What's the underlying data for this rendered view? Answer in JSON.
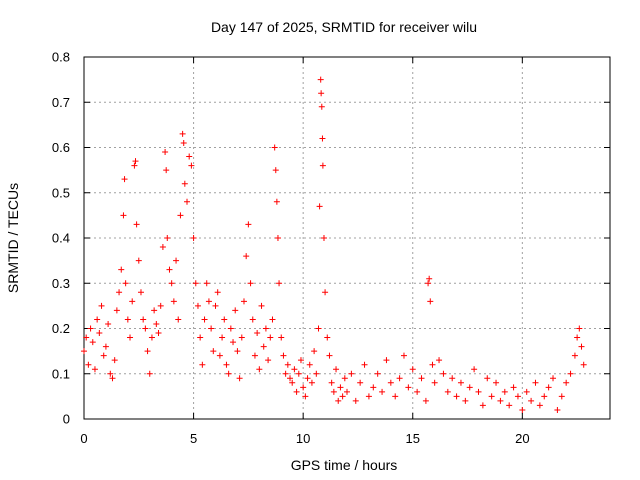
{
  "chart_data": {
    "type": "scatter",
    "title": "Day 147 of 2025, SRMTID for receiver wilu",
    "xlabel": "GPS time / hours",
    "ylabel": "SRMTID / TECUs",
    "xlim": [
      0,
      24.0
    ],
    "ylim": [
      0,
      0.8
    ],
    "xticks": [
      0,
      5,
      10,
      15,
      20
    ],
    "xtick_labels": [
      "0",
      "5",
      "10",
      "15",
      "20"
    ],
    "yticks": [
      0,
      0.1,
      0.2,
      0.3,
      0.4,
      0.5,
      0.6,
      0.7,
      0.8
    ],
    "ytick_labels": [
      "0",
      "0.1",
      "0.2",
      "0.3",
      "0.4",
      "0.5",
      "0.6",
      "0.7",
      "0.8"
    ],
    "grid": true,
    "marker": "plus",
    "color": "#ff0000",
    "series": [
      {
        "name": "SRMTID",
        "points": [
          [
            0.0,
            0.15
          ],
          [
            0.1,
            0.18
          ],
          [
            0.2,
            0.12
          ],
          [
            0.3,
            0.2
          ],
          [
            0.4,
            0.17
          ],
          [
            0.5,
            0.11
          ],
          [
            0.6,
            0.22
          ],
          [
            0.7,
            0.19
          ],
          [
            0.8,
            0.25
          ],
          [
            0.9,
            0.14
          ],
          [
            1.0,
            0.16
          ],
          [
            1.1,
            0.21
          ],
          [
            1.2,
            0.1
          ],
          [
            1.3,
            0.09
          ],
          [
            1.4,
            0.13
          ],
          [
            1.5,
            0.24
          ],
          [
            1.6,
            0.28
          ],
          [
            1.7,
            0.33
          ],
          [
            1.8,
            0.45
          ],
          [
            1.85,
            0.53
          ],
          [
            1.9,
            0.3
          ],
          [
            2.0,
            0.22
          ],
          [
            2.1,
            0.18
          ],
          [
            2.2,
            0.26
          ],
          [
            2.3,
            0.56
          ],
          [
            2.35,
            0.57
          ],
          [
            2.4,
            0.43
          ],
          [
            2.5,
            0.35
          ],
          [
            2.6,
            0.28
          ],
          [
            2.7,
            0.22
          ],
          [
            2.8,
            0.2
          ],
          [
            2.9,
            0.15
          ],
          [
            3.0,
            0.1
          ],
          [
            3.1,
            0.18
          ],
          [
            3.2,
            0.24
          ],
          [
            3.3,
            0.21
          ],
          [
            3.4,
            0.19
          ],
          [
            3.5,
            0.25
          ],
          [
            3.6,
            0.38
          ],
          [
            3.7,
            0.59
          ],
          [
            3.75,
            0.55
          ],
          [
            3.8,
            0.4
          ],
          [
            3.9,
            0.33
          ],
          [
            4.0,
            0.3
          ],
          [
            4.1,
            0.26
          ],
          [
            4.2,
            0.35
          ],
          [
            4.3,
            0.22
          ],
          [
            4.4,
            0.45
          ],
          [
            4.5,
            0.63
          ],
          [
            4.55,
            0.61
          ],
          [
            4.6,
            0.52
          ],
          [
            4.7,
            0.48
          ],
          [
            4.8,
            0.58
          ],
          [
            4.9,
            0.56
          ],
          [
            5.0,
            0.4
          ],
          [
            5.1,
            0.3
          ],
          [
            5.2,
            0.25
          ],
          [
            5.3,
            0.18
          ],
          [
            5.4,
            0.12
          ],
          [
            5.5,
            0.22
          ],
          [
            5.6,
            0.3
          ],
          [
            5.7,
            0.26
          ],
          [
            5.8,
            0.2
          ],
          [
            5.9,
            0.15
          ],
          [
            6.0,
            0.25
          ],
          [
            6.1,
            0.28
          ],
          [
            6.2,
            0.14
          ],
          [
            6.3,
            0.18
          ],
          [
            6.4,
            0.22
          ],
          [
            6.5,
            0.12
          ],
          [
            6.6,
            0.1
          ],
          [
            6.7,
            0.2
          ],
          [
            6.8,
            0.17
          ],
          [
            6.9,
            0.24
          ],
          [
            7.0,
            0.15
          ],
          [
            7.1,
            0.09
          ],
          [
            7.2,
            0.18
          ],
          [
            7.3,
            0.26
          ],
          [
            7.4,
            0.36
          ],
          [
            7.5,
            0.43
          ],
          [
            7.6,
            0.3
          ],
          [
            7.7,
            0.22
          ],
          [
            7.8,
            0.14
          ],
          [
            7.9,
            0.19
          ],
          [
            8.0,
            0.11
          ],
          [
            8.1,
            0.25
          ],
          [
            8.2,
            0.16
          ],
          [
            8.3,
            0.2
          ],
          [
            8.4,
            0.13
          ],
          [
            8.5,
            0.18
          ],
          [
            8.6,
            0.22
          ],
          [
            8.7,
            0.6
          ],
          [
            8.75,
            0.55
          ],
          [
            8.8,
            0.48
          ],
          [
            8.85,
            0.4
          ],
          [
            8.9,
            0.3
          ],
          [
            9.0,
            0.18
          ],
          [
            9.1,
            0.14
          ],
          [
            9.2,
            0.1
          ],
          [
            9.3,
            0.12
          ],
          [
            9.4,
            0.09
          ],
          [
            9.5,
            0.08
          ],
          [
            9.6,
            0.11
          ],
          [
            9.7,
            0.06
          ],
          [
            9.8,
            0.1
          ],
          [
            9.9,
            0.13
          ],
          [
            10.0,
            0.07
          ],
          [
            10.1,
            0.05
          ],
          [
            10.2,
            0.09
          ],
          [
            10.3,
            0.12
          ],
          [
            10.4,
            0.08
          ],
          [
            10.5,
            0.15
          ],
          [
            10.6,
            0.1
          ],
          [
            10.7,
            0.2
          ],
          [
            10.75,
            0.47
          ],
          [
            10.8,
            0.75
          ],
          [
            10.82,
            0.72
          ],
          [
            10.85,
            0.69
          ],
          [
            10.88,
            0.62
          ],
          [
            10.9,
            0.56
          ],
          [
            10.95,
            0.4
          ],
          [
            11.0,
            0.28
          ],
          [
            11.1,
            0.18
          ],
          [
            11.2,
            0.14
          ],
          [
            11.3,
            0.08
          ],
          [
            11.4,
            0.06
          ],
          [
            11.5,
            0.11
          ],
          [
            11.6,
            0.04
          ],
          [
            11.7,
            0.07
          ],
          [
            11.8,
            0.05
          ],
          [
            11.9,
            0.09
          ],
          [
            12.0,
            0.06
          ],
          [
            12.2,
            0.1
          ],
          [
            12.4,
            0.04
          ],
          [
            12.6,
            0.08
          ],
          [
            12.8,
            0.12
          ],
          [
            13.0,
            0.05
          ],
          [
            13.2,
            0.07
          ],
          [
            13.4,
            0.1
          ],
          [
            13.6,
            0.06
          ],
          [
            13.8,
            0.13
          ],
          [
            14.0,
            0.08
          ],
          [
            14.2,
            0.05
          ],
          [
            14.4,
            0.09
          ],
          [
            14.6,
            0.14
          ],
          [
            14.8,
            0.07
          ],
          [
            15.0,
            0.11
          ],
          [
            15.2,
            0.06
          ],
          [
            15.4,
            0.09
          ],
          [
            15.6,
            0.04
          ],
          [
            15.7,
            0.3
          ],
          [
            15.75,
            0.31
          ],
          [
            15.8,
            0.26
          ],
          [
            15.9,
            0.12
          ],
          [
            16.0,
            0.08
          ],
          [
            16.2,
            0.13
          ],
          [
            16.4,
            0.1
          ],
          [
            16.6,
            0.06
          ],
          [
            16.8,
            0.09
          ],
          [
            17.0,
            0.05
          ],
          [
            17.2,
            0.08
          ],
          [
            17.4,
            0.04
          ],
          [
            17.6,
            0.07
          ],
          [
            17.8,
            0.11
          ],
          [
            18.0,
            0.06
          ],
          [
            18.2,
            0.03
          ],
          [
            18.4,
            0.09
          ],
          [
            18.6,
            0.05
          ],
          [
            18.8,
            0.08
          ],
          [
            19.0,
            0.04
          ],
          [
            19.2,
            0.06
          ],
          [
            19.4,
            0.03
          ],
          [
            19.6,
            0.07
          ],
          [
            19.8,
            0.05
          ],
          [
            20.0,
            0.02
          ],
          [
            20.2,
            0.06
          ],
          [
            20.4,
            0.04
          ],
          [
            20.6,
            0.08
          ],
          [
            20.8,
            0.03
          ],
          [
            21.0,
            0.05
          ],
          [
            21.2,
            0.07
          ],
          [
            21.4,
            0.09
          ],
          [
            21.6,
            0.02
          ],
          [
            21.8,
            0.05
          ],
          [
            22.0,
            0.08
          ],
          [
            22.2,
            0.1
          ],
          [
            22.4,
            0.14
          ],
          [
            22.5,
            0.18
          ],
          [
            22.6,
            0.2
          ],
          [
            22.7,
            0.16
          ],
          [
            22.8,
            0.12
          ]
        ]
      }
    ]
  }
}
